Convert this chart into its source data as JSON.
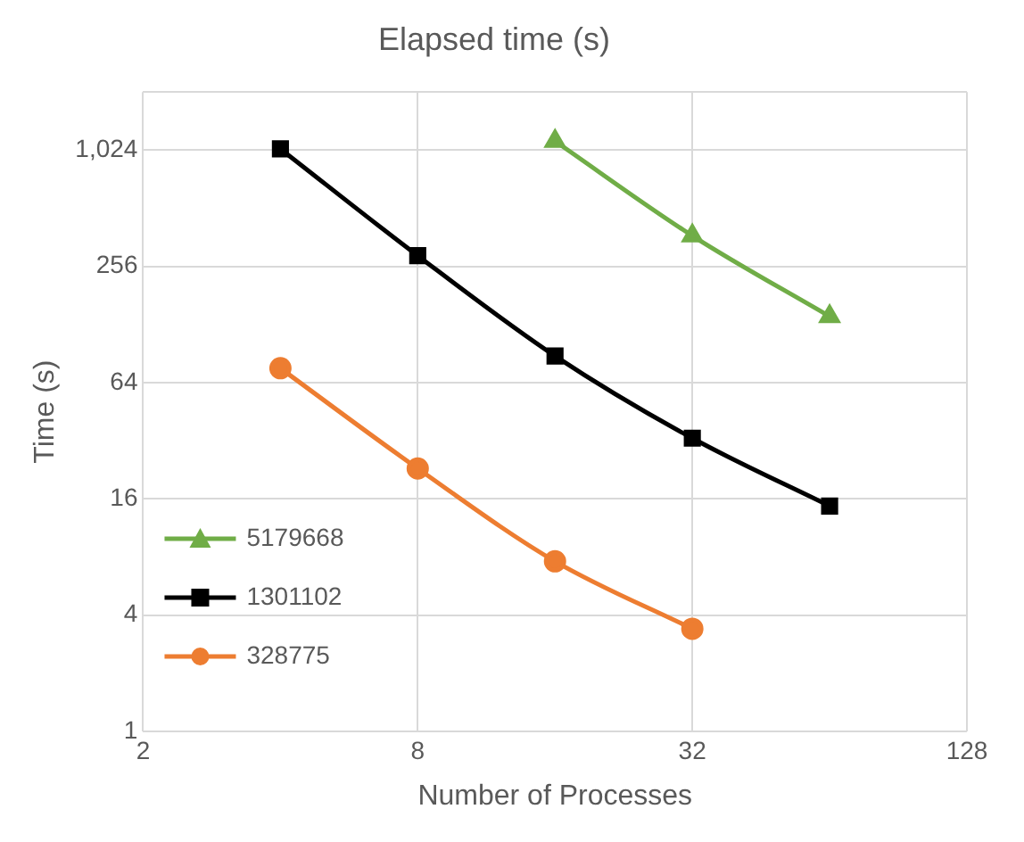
{
  "chart_data": {
    "type": "line",
    "title": "Elapsed time (s)",
    "xlabel": "Number of Processes",
    "ylabel": "Time (s)",
    "log": "xy",
    "xlim": [
      2,
      128
    ],
    "xticks": [
      2,
      8,
      32,
      128
    ],
    "ylim": [
      1,
      2048
    ],
    "yticks": [
      1,
      4,
      16,
      64,
      256,
      {
        "value": 1024,
        "label": "1,024"
      },
      {
        "value": 2048,
        "label": null
      }
    ],
    "grid": true,
    "legend": "bottom left",
    "series": [
      {
        "name": "5179668",
        "color": "#70ad47",
        "marker": "triangle",
        "x": [
          16,
          32,
          64
        ],
        "values": [
          1140,
          369,
          141
        ]
      },
      {
        "name": "1301102",
        "color": "#000000",
        "marker": "square",
        "x": [
          4,
          8,
          16,
          32,
          64
        ],
        "values": [
          1040,
          291,
          88,
          33,
          14.7
        ]
      },
      {
        "name": "328775",
        "color": "#ed7d31",
        "marker": "circle",
        "x": [
          4,
          8,
          16,
          32
        ],
        "values": [
          76,
          23,
          7.6,
          3.4
        ]
      }
    ]
  }
}
